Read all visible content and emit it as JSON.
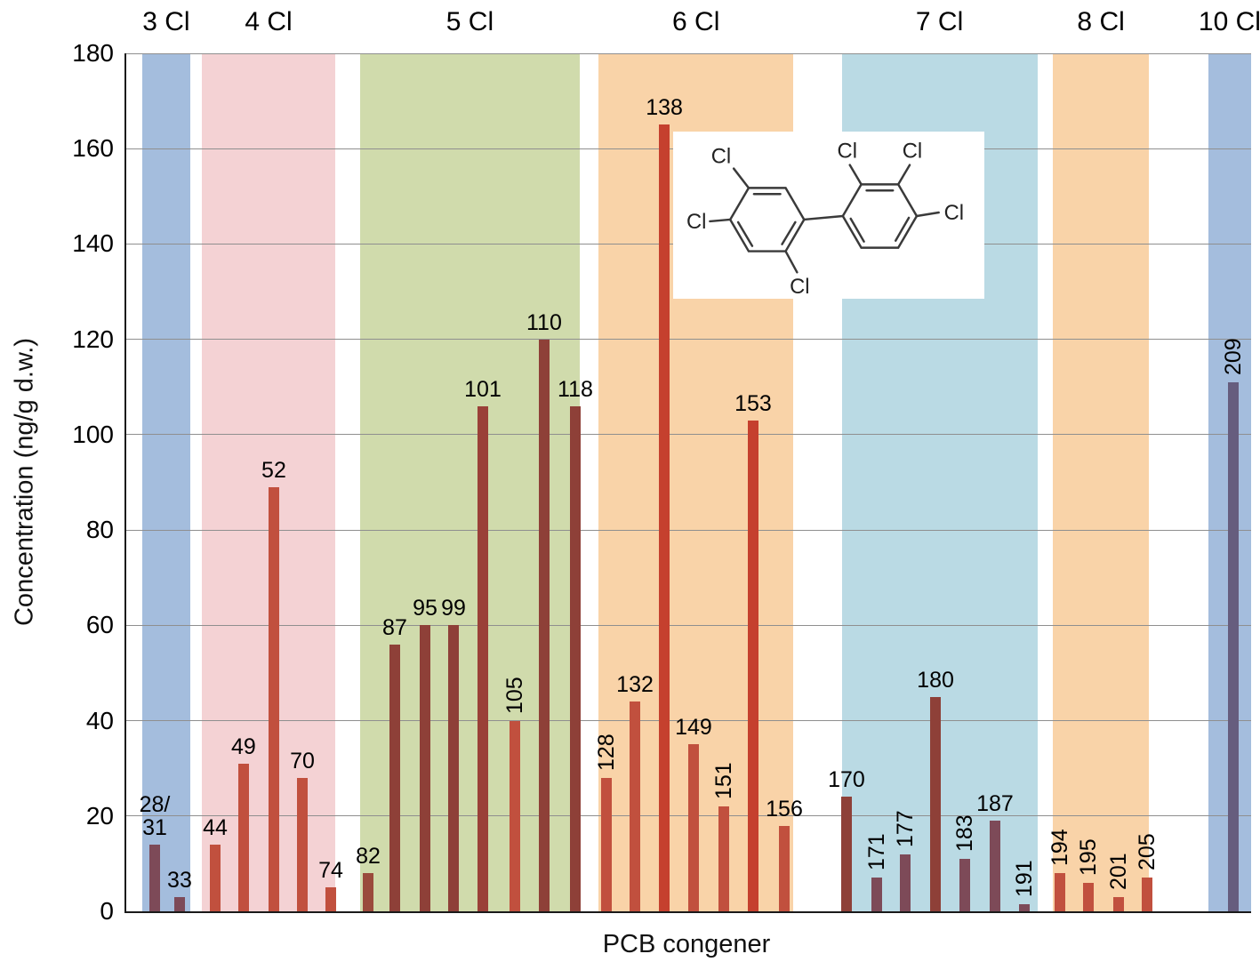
{
  "chart_data": {
    "type": "bar",
    "xlabel": "PCB congener",
    "ylabel": "Concentration (ng/g d.w.)",
    "ylim": [
      0,
      180
    ],
    "y_ticks": [
      0,
      20,
      40,
      60,
      80,
      100,
      120,
      140,
      160,
      180
    ],
    "grid": true,
    "legend": "none",
    "groups": [
      {
        "label": "3 Cl",
        "band_color": "#a4bddd",
        "start": 0.014,
        "end": 0.057
      },
      {
        "label": "4 Cl",
        "band_color": "#f4d2d4",
        "start": 0.067,
        "end": 0.186
      },
      {
        "label": "5 Cl",
        "band_color": "#d0dbac",
        "start": 0.208,
        "end": 0.403
      },
      {
        "label": "6 Cl",
        "band_color": "#f9d3a8",
        "start": 0.42,
        "end": 0.593
      },
      {
        "label": "7 Cl",
        "band_color": "#badae4",
        "start": 0.636,
        "end": 0.81
      },
      {
        "label": "8 Cl",
        "band_color": "#f9d3a8",
        "start": 0.824,
        "end": 0.909
      },
      {
        "label": "10 Cl",
        "band_color": "#a4bddd",
        "start": 0.962,
        "end": 1.0
      }
    ],
    "bars": [
      {
        "congener": "28/31",
        "display": "28/\n31",
        "value": 14,
        "x": 0.0253,
        "color": "#7d4a58",
        "label_orient": "h"
      },
      {
        "congener": "33",
        "value": 3,
        "x": 0.0474,
        "color": "#7d4a58",
        "label_orient": "h"
      },
      {
        "congener": "44",
        "value": 14,
        "x": 0.0791,
        "color": "#c1503e",
        "label_orient": "h"
      },
      {
        "congener": "49",
        "value": 31,
        "x": 0.1043,
        "color": "#c1503e",
        "label_orient": "h"
      },
      {
        "congener": "52",
        "value": 89,
        "x": 0.1312,
        "color": "#c1503e",
        "label_orient": "h"
      },
      {
        "congener": "70",
        "value": 28,
        "x": 0.1565,
        "color": "#c1503e",
        "label_orient": "h"
      },
      {
        "congener": "74",
        "value": 5,
        "x": 0.1818,
        "color": "#c1503e",
        "label_orient": "h"
      },
      {
        "congener": "82",
        "value": 8,
        "x": 0.215,
        "color": "#9a4a3c",
        "label_orient": "h"
      },
      {
        "congener": "87",
        "value": 56,
        "x": 0.2387,
        "color": "#8e4038",
        "label_orient": "h"
      },
      {
        "congener": "95",
        "value": 60,
        "x": 0.2656,
        "color": "#8e4038",
        "label_orient": "h"
      },
      {
        "congener": "99",
        "value": 60,
        "x": 0.2909,
        "color": "#8e4038",
        "label_orient": "h"
      },
      {
        "congener": "101",
        "value": 106,
        "x": 0.317,
        "color": "#9a4038",
        "label_orient": "h"
      },
      {
        "congener": "105",
        "value": 40,
        "x": 0.3455,
        "color": "#c1503e",
        "label_orient": "v"
      },
      {
        "congener": "110",
        "value": 120,
        "x": 0.3715,
        "color": "#8e4038",
        "label_orient": "h"
      },
      {
        "congener": "118",
        "value": 106,
        "x": 0.3992,
        "color": "#8e4038",
        "label_orient": "h"
      },
      {
        "congener": "128",
        "value": 28,
        "x": 0.4269,
        "color": "#c1503e",
        "label_orient": "v"
      },
      {
        "congener": "132",
        "value": 44,
        "x": 0.4522,
        "color": "#c1503e",
        "label_orient": "h"
      },
      {
        "congener": "138",
        "value": 165,
        "x": 0.4783,
        "color": "#c5402e",
        "label_orient": "h"
      },
      {
        "congener": "149",
        "value": 35,
        "x": 0.5043,
        "color": "#c1503e",
        "label_orient": "h"
      },
      {
        "congener": "151",
        "value": 22,
        "x": 0.5312,
        "color": "#c1503e",
        "label_orient": "v"
      },
      {
        "congener": "153",
        "value": 103,
        "x": 0.5573,
        "color": "#c5402e",
        "label_orient": "h"
      },
      {
        "congener": "156",
        "value": 18,
        "x": 0.585,
        "color": "#c1503e",
        "label_orient": "h"
      },
      {
        "congener": "170",
        "value": 24,
        "x": 0.6403,
        "color": "#8e4038",
        "label_orient": "h"
      },
      {
        "congener": "171",
        "value": 7,
        "x": 0.6672,
        "color": "#7d4a58",
        "label_orient": "v"
      },
      {
        "congener": "177",
        "value": 12,
        "x": 0.6925,
        "color": "#7d4a58",
        "label_orient": "v"
      },
      {
        "congener": "180",
        "value": 45,
        "x": 0.7194,
        "color": "#8e4038",
        "label_orient": "h"
      },
      {
        "congener": "183",
        "value": 11,
        "x": 0.7455,
        "color": "#7d4a58",
        "label_orient": "v"
      },
      {
        "congener": "187",
        "value": 19,
        "x": 0.7723,
        "color": "#7d4a58",
        "label_orient": "h"
      },
      {
        "congener": "191",
        "value": 1.5,
        "x": 0.7984,
        "color": "#7d4a58",
        "label_orient": "v"
      },
      {
        "congener": "194",
        "value": 8,
        "x": 0.83,
        "color": "#c1503e",
        "label_orient": "v"
      },
      {
        "congener": "195",
        "value": 6,
        "x": 0.8553,
        "color": "#c1503e",
        "label_orient": "v"
      },
      {
        "congener": "201",
        "value": 3,
        "x": 0.8822,
        "color": "#c1503e",
        "label_orient": "v"
      },
      {
        "congener": "205",
        "value": 7,
        "x": 0.9075,
        "color": "#c1503e",
        "label_orient": "v"
      },
      {
        "congener": "209",
        "value": 111,
        "x": 0.9842,
        "color": "#665d7e",
        "label_orient": "v"
      }
    ],
    "molecule_inset": {
      "atom_labels": [
        "Cl",
        "Cl",
        "Cl",
        "Cl",
        "Cl",
        "Cl"
      ]
    }
  }
}
